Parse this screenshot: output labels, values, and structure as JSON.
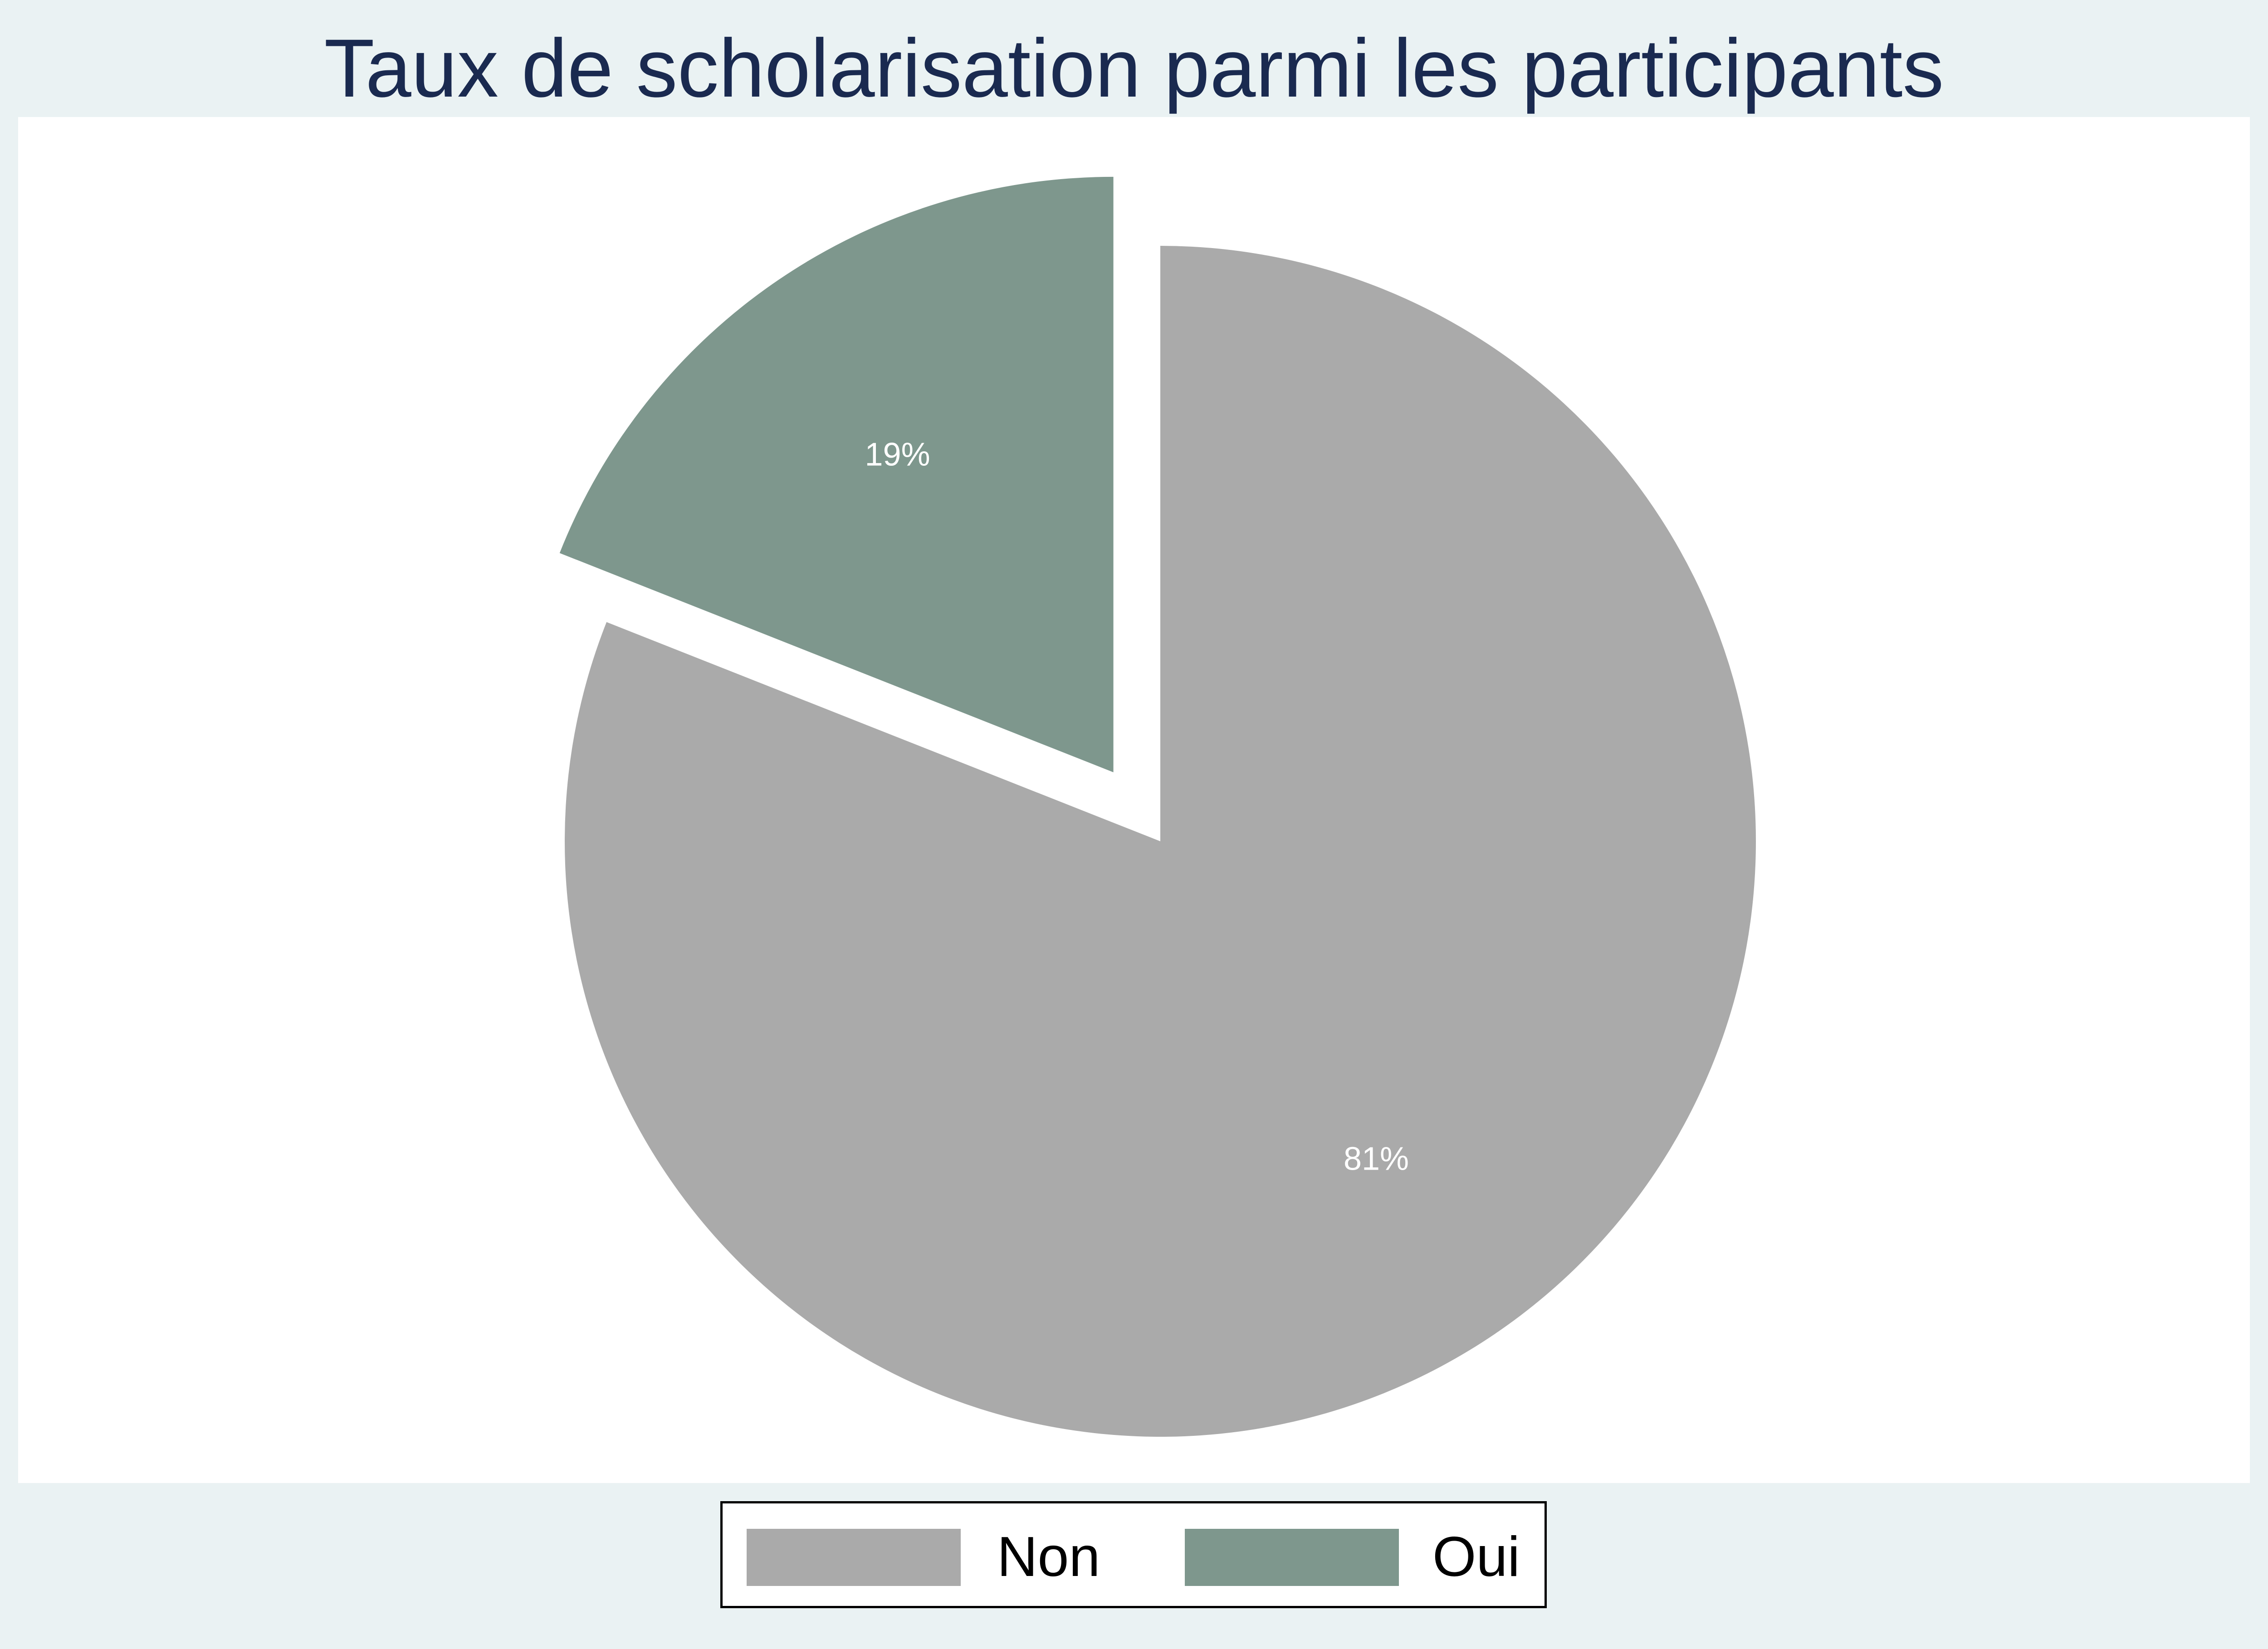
{
  "chart_data": {
    "type": "pie",
    "title": "Taux de scholarisation parmi les participants",
    "categories": [
      "Non",
      "Oui"
    ],
    "values": [
      81,
      19
    ],
    "slice_labels": [
      "81%",
      "19%"
    ],
    "colors": [
      "#aaaaaa",
      "#7e978d"
    ],
    "exploded": [
      "Oui"
    ],
    "legend_position": "bottom"
  },
  "colors": {
    "background": "#eaf2f3",
    "plot_background": "#ffffff",
    "title": "#1a2a50",
    "slice_label": "#ffffff"
  }
}
